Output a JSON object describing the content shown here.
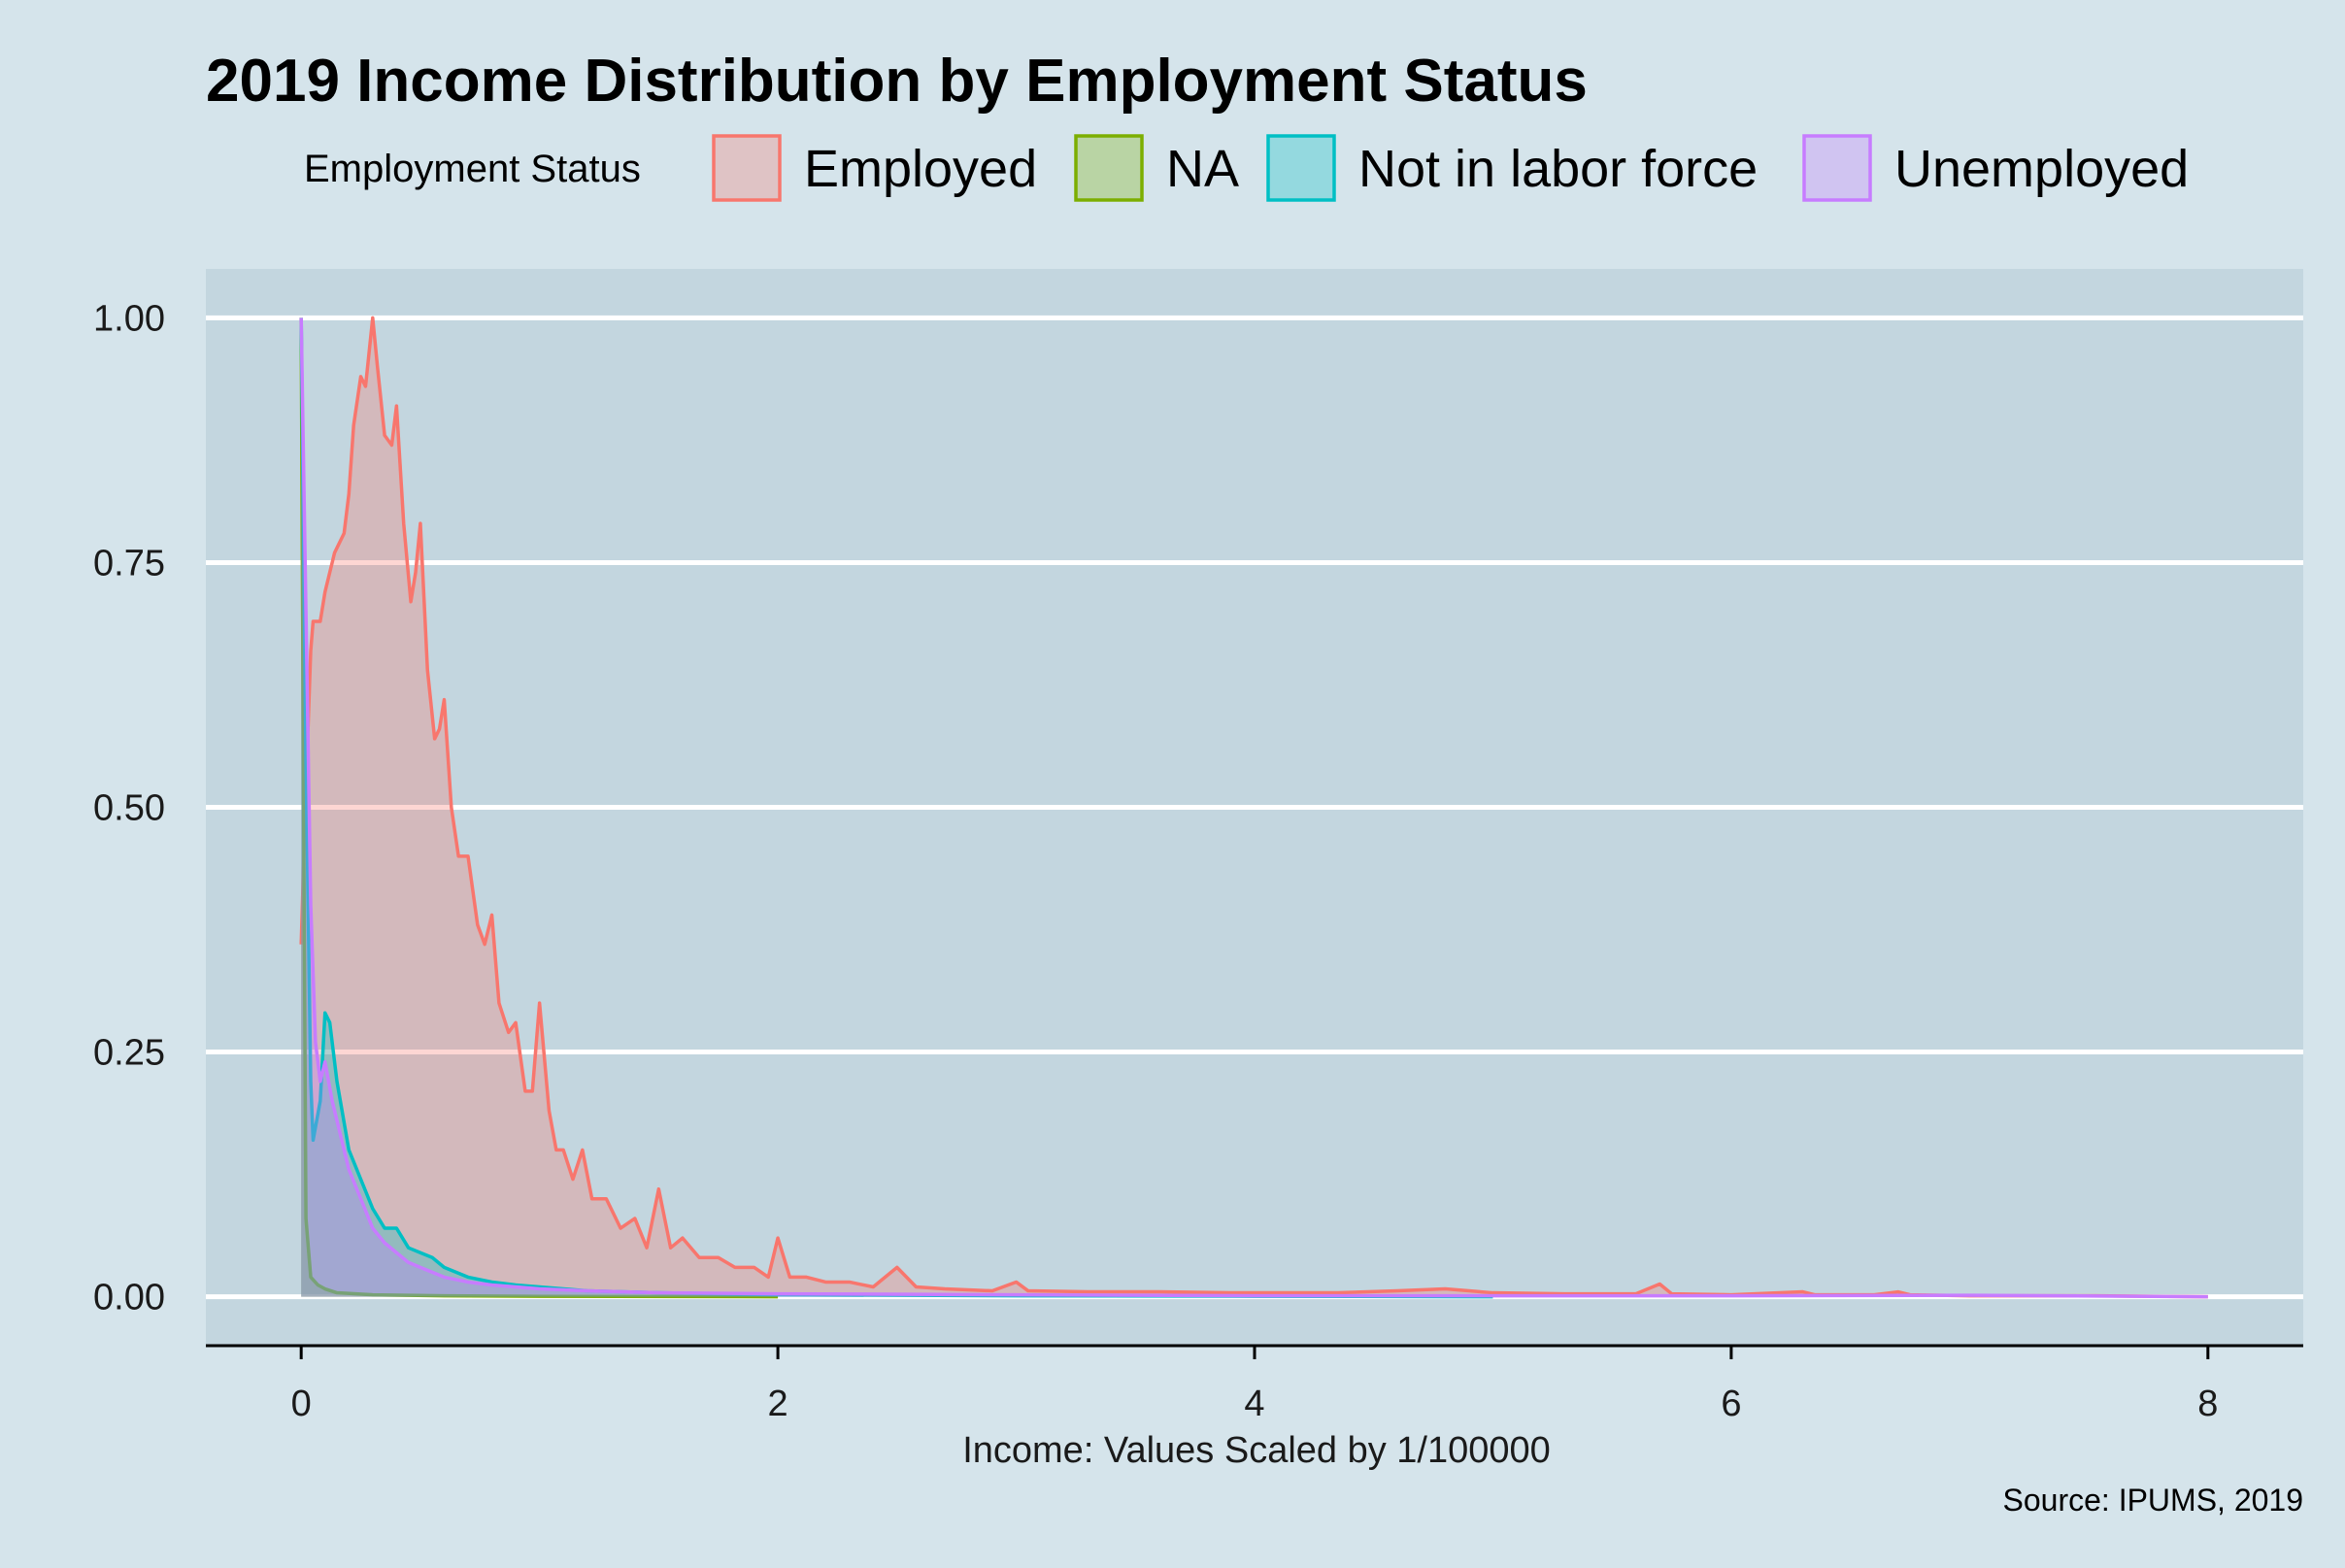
{
  "chart_data": {
    "type": "area",
    "title": "2019 Income Distribution by Employment Status",
    "subtitle": "",
    "xlabel": "Income: Values Scaled by 1/100000",
    "ylabel": "",
    "caption": "Source: IPUMS, 2019",
    "xlim": [
      -0.4,
      8.4
    ],
    "ylim": [
      -0.05,
      1.05
    ],
    "x_ticks": [
      0,
      2,
      4,
      6,
      8
    ],
    "x_tick_labels": [
      "0",
      "2",
      "4",
      "6",
      "8"
    ],
    "y_ticks": [
      0,
      0.25,
      0.5,
      0.75,
      1.0
    ],
    "y_tick_labels": [
      "0.00",
      "0.25",
      "0.50",
      "0.75",
      "1.00"
    ],
    "grid": "horizontal-major",
    "legend": {
      "title": "Employment Status",
      "position": "top"
    },
    "series": [
      {
        "name": "Employed",
        "color": "#f8766d",
        "points": [
          [
            0.0,
            0.36
          ],
          [
            0.02,
            0.52
          ],
          [
            0.04,
            0.66
          ],
          [
            0.05,
            0.69
          ],
          [
            0.08,
            0.69
          ],
          [
            0.1,
            0.72
          ],
          [
            0.14,
            0.76
          ],
          [
            0.18,
            0.78
          ],
          [
            0.2,
            0.82
          ],
          [
            0.22,
            0.89
          ],
          [
            0.25,
            0.94
          ],
          [
            0.27,
            0.93
          ],
          [
            0.3,
            1.0
          ],
          [
            0.32,
            0.95
          ],
          [
            0.35,
            0.88
          ],
          [
            0.38,
            0.87
          ],
          [
            0.4,
            0.91
          ],
          [
            0.43,
            0.79
          ],
          [
            0.46,
            0.71
          ],
          [
            0.48,
            0.74
          ],
          [
            0.5,
            0.79
          ],
          [
            0.53,
            0.64
          ],
          [
            0.56,
            0.57
          ],
          [
            0.58,
            0.58
          ],
          [
            0.6,
            0.61
          ],
          [
            0.63,
            0.5
          ],
          [
            0.66,
            0.45
          ],
          [
            0.7,
            0.45
          ],
          [
            0.74,
            0.38
          ],
          [
            0.77,
            0.36
          ],
          [
            0.8,
            0.39
          ],
          [
            0.83,
            0.3
          ],
          [
            0.87,
            0.27
          ],
          [
            0.9,
            0.28
          ],
          [
            0.94,
            0.21
          ],
          [
            0.97,
            0.21
          ],
          [
            1.0,
            0.3
          ],
          [
            1.04,
            0.19
          ],
          [
            1.07,
            0.15
          ],
          [
            1.1,
            0.15
          ],
          [
            1.14,
            0.12
          ],
          [
            1.18,
            0.15
          ],
          [
            1.22,
            0.1
          ],
          [
            1.28,
            0.1
          ],
          [
            1.34,
            0.07
          ],
          [
            1.4,
            0.08
          ],
          [
            1.45,
            0.05
          ],
          [
            1.5,
            0.11
          ],
          [
            1.55,
            0.05
          ],
          [
            1.6,
            0.06
          ],
          [
            1.67,
            0.04
          ],
          [
            1.75,
            0.04
          ],
          [
            1.82,
            0.03
          ],
          [
            1.9,
            0.03
          ],
          [
            1.96,
            0.02
          ],
          [
            2.0,
            0.06
          ],
          [
            2.05,
            0.02
          ],
          [
            2.12,
            0.02
          ],
          [
            2.2,
            0.015
          ],
          [
            2.3,
            0.015
          ],
          [
            2.4,
            0.01
          ],
          [
            2.5,
            0.03
          ],
          [
            2.58,
            0.01
          ],
          [
            2.7,
            0.008
          ],
          [
            2.9,
            0.006
          ],
          [
            3.0,
            0.015
          ],
          [
            3.05,
            0.006
          ],
          [
            3.3,
            0.005
          ],
          [
            3.6,
            0.005
          ],
          [
            3.9,
            0.004
          ],
          [
            4.1,
            0.004
          ],
          [
            4.35,
            0.004
          ],
          [
            4.6,
            0.006
          ],
          [
            4.8,
            0.008
          ],
          [
            5.0,
            0.004
          ],
          [
            5.3,
            0.003
          ],
          [
            5.6,
            0.003
          ],
          [
            5.7,
            0.013
          ],
          [
            5.75,
            0.003
          ],
          [
            6.0,
            0.002
          ],
          [
            6.3,
            0.005
          ],
          [
            6.35,
            0.002
          ],
          [
            6.6,
            0.002
          ],
          [
            6.7,
            0.005
          ],
          [
            6.75,
            0.002
          ],
          [
            7.0,
            0.001
          ],
          [
            7.5,
            0.001
          ],
          [
            8.0,
            0.0
          ]
        ]
      },
      {
        "name": "NA",
        "color": "#7cae00",
        "points": [
          [
            0.0,
            1.0
          ],
          [
            0.01,
            0.5
          ],
          [
            0.02,
            0.08
          ],
          [
            0.04,
            0.02
          ],
          [
            0.07,
            0.012
          ],
          [
            0.1,
            0.008
          ],
          [
            0.15,
            0.004
          ],
          [
            0.3,
            0.002
          ],
          [
            0.6,
            0.001
          ],
          [
            1.0,
            0.0005
          ],
          [
            2.0,
            0.0
          ]
        ]
      },
      {
        "name": "Not in labor force",
        "color": "#00bfc4",
        "points": [
          [
            0.0,
            1.0
          ],
          [
            0.02,
            0.55
          ],
          [
            0.04,
            0.22
          ],
          [
            0.05,
            0.16
          ],
          [
            0.08,
            0.2
          ],
          [
            0.1,
            0.29
          ],
          [
            0.12,
            0.28
          ],
          [
            0.15,
            0.22
          ],
          [
            0.2,
            0.15
          ],
          [
            0.25,
            0.12
          ],
          [
            0.3,
            0.09
          ],
          [
            0.35,
            0.07
          ],
          [
            0.4,
            0.07
          ],
          [
            0.45,
            0.05
          ],
          [
            0.5,
            0.045
          ],
          [
            0.55,
            0.04
          ],
          [
            0.6,
            0.03
          ],
          [
            0.7,
            0.02
          ],
          [
            0.8,
            0.015
          ],
          [
            0.9,
            0.012
          ],
          [
            1.0,
            0.01
          ],
          [
            1.2,
            0.006
          ],
          [
            1.5,
            0.004
          ],
          [
            2.0,
            0.002
          ],
          [
            3.0,
            0.001
          ],
          [
            4.0,
            0.0005
          ],
          [
            5.0,
            0.0
          ]
        ]
      },
      {
        "name": "Unemployed",
        "color": "#c77cff",
        "points": [
          [
            0.0,
            1.0
          ],
          [
            0.02,
            0.7
          ],
          [
            0.04,
            0.4
          ],
          [
            0.06,
            0.26
          ],
          [
            0.08,
            0.22
          ],
          [
            0.1,
            0.24
          ],
          [
            0.13,
            0.2
          ],
          [
            0.16,
            0.17
          ],
          [
            0.2,
            0.13
          ],
          [
            0.25,
            0.1
          ],
          [
            0.3,
            0.07
          ],
          [
            0.35,
            0.055
          ],
          [
            0.4,
            0.045
          ],
          [
            0.45,
            0.035
          ],
          [
            0.5,
            0.03
          ],
          [
            0.55,
            0.025
          ],
          [
            0.6,
            0.02
          ],
          [
            0.7,
            0.015
          ],
          [
            0.8,
            0.012
          ],
          [
            0.9,
            0.01
          ],
          [
            1.0,
            0.008
          ],
          [
            1.2,
            0.006
          ],
          [
            1.5,
            0.004
          ],
          [
            2.0,
            0.003
          ],
          [
            3.0,
            0.002
          ],
          [
            4.0,
            0.001
          ],
          [
            6.0,
            0.001
          ],
          [
            7.0,
            0.0015
          ],
          [
            8.0,
            0.0
          ]
        ]
      }
    ]
  }
}
